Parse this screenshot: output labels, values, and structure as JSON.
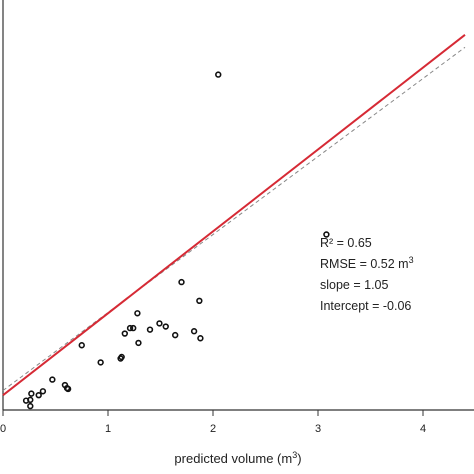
{
  "chart_data": {
    "type": "scatter",
    "title": "",
    "xlabel_main": "predicted volume (m",
    "xlabel_sup": "3",
    "xlabel_end": ")",
    "ylabel": "",
    "xlim": [
      0,
      4.4
    ],
    "ylim": [
      -0.25,
      4.1
    ],
    "x_ticks": [
      0,
      1,
      2,
      3,
      4
    ],
    "x_tick_labels": [
      "0",
      "1",
      "2",
      "3",
      "4"
    ],
    "grid": false,
    "points": [
      {
        "x": 2.05,
        "y": 4.05
      },
      {
        "x": 3.08,
        "y": 2.0
      },
      {
        "x": 1.7,
        "y": 1.39
      },
      {
        "x": 1.87,
        "y": 1.15
      },
      {
        "x": 1.28,
        "y": 0.99
      },
      {
        "x": 1.49,
        "y": 0.86
      },
      {
        "x": 1.55,
        "y": 0.82
      },
      {
        "x": 1.21,
        "y": 0.8
      },
      {
        "x": 1.24,
        "y": 0.8
      },
      {
        "x": 1.4,
        "y": 0.78
      },
      {
        "x": 1.82,
        "y": 0.76
      },
      {
        "x": 1.16,
        "y": 0.73
      },
      {
        "x": 1.64,
        "y": 0.71
      },
      {
        "x": 1.88,
        "y": 0.67
      },
      {
        "x": 1.29,
        "y": 0.61
      },
      {
        "x": 0.75,
        "y": 0.58
      },
      {
        "x": 1.13,
        "y": 0.43
      },
      {
        "x": 1.12,
        "y": 0.41
      },
      {
        "x": 0.93,
        "y": 0.36
      },
      {
        "x": 0.47,
        "y": 0.14
      },
      {
        "x": 0.59,
        "y": 0.07
      },
      {
        "x": 0.61,
        "y": 0.03
      },
      {
        "x": 0.62,
        "y": 0.02
      },
      {
        "x": 0.38,
        "y": -0.01
      },
      {
        "x": 0.27,
        "y": -0.04
      },
      {
        "x": 0.34,
        "y": -0.06
      },
      {
        "x": 0.26,
        "y": -0.12
      },
      {
        "x": 0.22,
        "y": -0.13
      },
      {
        "x": 0.26,
        "y": -0.2
      }
    ],
    "fit_line": {
      "slope": 1.05,
      "intercept": -0.06,
      "color": "#d62a35"
    },
    "reference_line": {
      "slope": 1,
      "intercept": 0,
      "style": "dashed",
      "color": "#888888"
    },
    "annotation": [
      {
        "text": "R² = 0.65"
      },
      {
        "text_main": "RMSE = 0.52 m",
        "text_sup": "3"
      },
      {
        "text": "slope = 1.05"
      },
      {
        "text": "Intercept = -0.06"
      }
    ]
  }
}
